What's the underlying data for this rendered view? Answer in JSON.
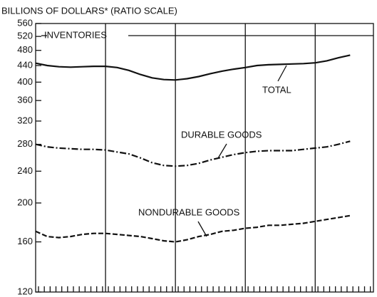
{
  "chart_data": {
    "type": "line",
    "title": "BILLIONS OF DOLLARS* (RATIO SCALE)",
    "annotations": [
      "INVENTORIES",
      "TOTAL",
      "DURABLE GOODS",
      "NONDURABLE GOODS"
    ],
    "log_scale": true,
    "x": [
      0,
      2,
      4,
      6,
      8,
      10,
      12,
      14,
      16,
      18,
      20,
      22,
      24,
      26,
      28,
      30,
      32,
      34,
      36,
      38,
      40,
      42,
      44,
      46,
      48,
      50,
      52,
      54
    ],
    "xlim": [
      0,
      58
    ],
    "xticks": [
      12,
      24,
      36,
      48
    ],
    "ylim": [
      120,
      560
    ],
    "yticks": [
      120,
      160,
      200,
      240,
      280,
      320,
      360,
      400,
      440,
      480,
      520,
      560
    ],
    "series": [
      {
        "name": "TOTAL",
        "color": "#111111",
        "linestyle": "solid",
        "values": [
          446,
          440,
          437,
          436,
          437,
          438,
          438,
          435,
          428,
          418,
          410,
          406,
          405,
          408,
          413,
          420,
          426,
          431,
          435,
          440,
          442,
          443,
          444,
          445,
          447,
          452,
          460,
          467
        ]
      },
      {
        "name": "DURABLE GOODS",
        "color": "#111111",
        "linestyle": "dashdot",
        "values": [
          280,
          276,
          274,
          273,
          272,
          272,
          271,
          268,
          265,
          259,
          252,
          248,
          247,
          248,
          251,
          256,
          260,
          264,
          267,
          269,
          270,
          270,
          270,
          272,
          274,
          276,
          280,
          285
        ]
      },
      {
        "name": "NONDURABLE GOODS",
        "color": "#111111",
        "linestyle": "dashed",
        "values": [
          170,
          165,
          164,
          165,
          167,
          168,
          168,
          167,
          166,
          165,
          163,
          161,
          160,
          162,
          165,
          167,
          170,
          171,
          173,
          174,
          176,
          176,
          177,
          178,
          180,
          182,
          184,
          186
        ]
      }
    ]
  }
}
